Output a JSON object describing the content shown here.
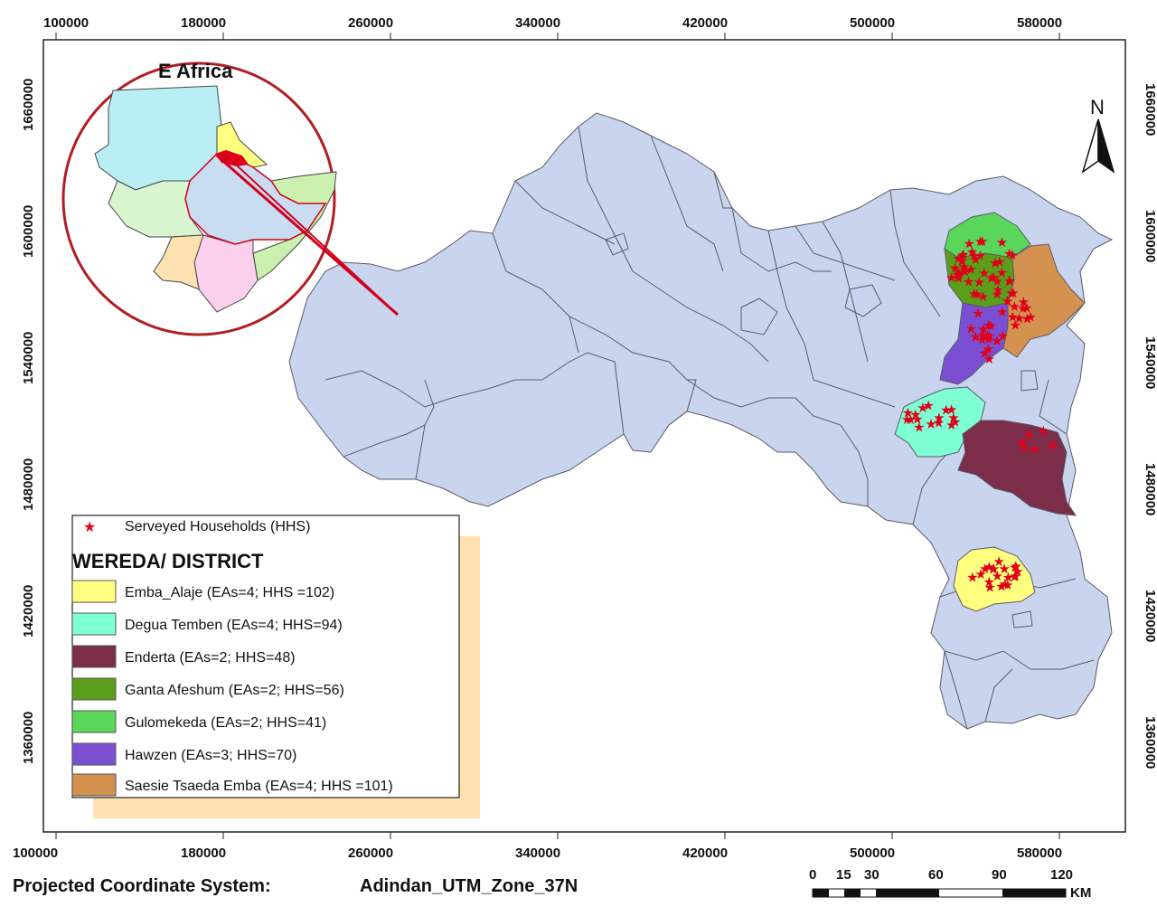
{
  "map": {
    "inset_title": "E Africa",
    "north_label": "N",
    "crs_label": "Projected Coordinate System:",
    "crs_value": "Adindan_UTM_Zone_37N",
    "x_ticks": [
      "100000",
      "180000",
      "260000",
      "340000",
      "420000",
      "500000",
      "580000"
    ],
    "y_ticks": [
      "1660000",
      "1600000",
      "1540000",
      "1480000",
      "1420000",
      "1360000"
    ],
    "scale": {
      "labels": [
        "0",
        "15",
        "30",
        "60",
        "90",
        "120"
      ],
      "unit": "KM"
    }
  },
  "legend": {
    "star_label": "Serveyed Households (HHS)",
    "title": "WEREDA/ DISTRICT",
    "items": [
      {
        "label": "Emba_Alaje (EAs=4; HHS =102)",
        "color": "#ffff80"
      },
      {
        "label": "Degua Temben (EAs=4; HHS=94)",
        "color": "#7fffd4"
      },
      {
        "label": "Enderta  (EAs=2; HHS=48)",
        "color": "#7b2d4a"
      },
      {
        "label": "Ganta Afeshum  (EAs=2;  HHS=56)",
        "color": "#5a9e1c"
      },
      {
        "label": "Gulomekeda  (EAs=2;  HHS=41)",
        "color": "#5ad65a"
      },
      {
        "label": "Hawzen  (EAs=3; HHS=70)",
        "color": "#7b4fd1"
      },
      {
        "label": "Saesie Tsaeda Emba  (EAs=4; HHS =101)",
        "color": "#d4914f"
      }
    ]
  },
  "colors": {
    "base_district": "#c9d5ef",
    "star": "#e0001a",
    "inset_ring": "#b01e24",
    "legend_shadow": "#ffe2b0"
  }
}
